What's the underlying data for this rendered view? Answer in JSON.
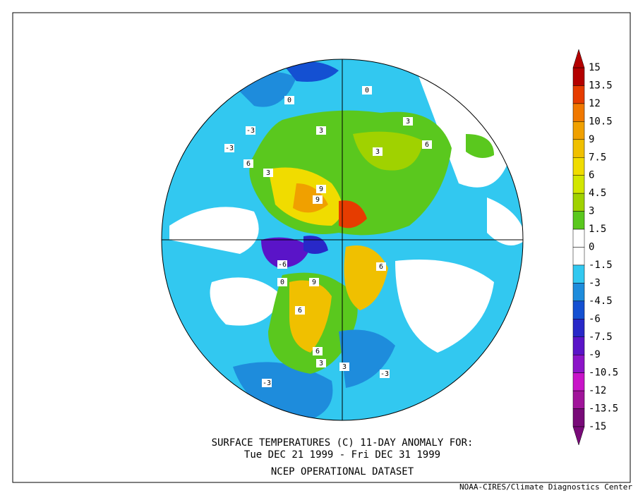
{
  "caption": {
    "line1": "SURFACE TEMPERATURES (C)    11-DAY ANOMALY FOR:",
    "line2": "Tue DEC 21 1999 - Fri DEC 31 1999",
    "line3": "NCEP OPERATIONAL DATASET"
  },
  "credit": "NOAA-CIRES/Climate Diagnostics Center",
  "colorbar": {
    "levels": [
      15,
      13.5,
      12,
      10.5,
      9,
      7.5,
      6,
      4.5,
      3,
      1.5,
      0,
      -1.5,
      -3,
      -4.5,
      -6,
      -7.5,
      -9,
      -10.5,
      -12,
      -13.5,
      -15
    ],
    "colors": [
      "#b40000",
      "#e63c00",
      "#f07800",
      "#f0a000",
      "#f0c000",
      "#f0dc00",
      "#d2e600",
      "#a0d200",
      "#5ac81e",
      "#ffffff",
      "#ffffff",
      "#32c8f0",
      "#1e8cdc",
      "#1450d2",
      "#2828c8",
      "#5a14c8",
      "#8c14c8",
      "#c814c8",
      "#a0149a",
      "#780a78"
    ]
  },
  "map_labels": [
    "0",
    "-3",
    "-3",
    "3",
    "3",
    "6",
    "9",
    "9",
    "3",
    "6",
    "3",
    "-6",
    "0",
    "9",
    "6",
    "6",
    "3",
    "-3",
    "-3",
    "0",
    "3",
    "6"
  ]
}
